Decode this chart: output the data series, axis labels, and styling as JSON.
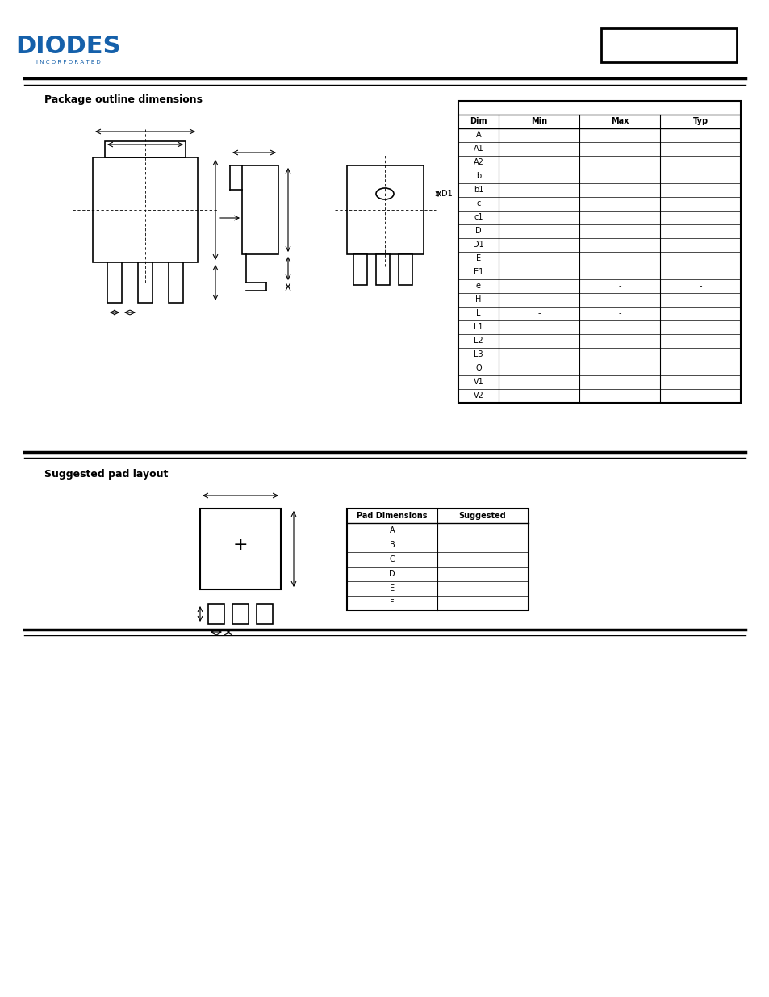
{
  "title": "Package outline dimensions",
  "title2": "Suggested pad layout",
  "background_color": "#ffffff",
  "line_color": "#000000",
  "table1_header_row": [
    "Dim",
    "Min",
    "Max",
    "Typ"
  ],
  "table1_rows": [
    [
      "A",
      "",
      "",
      ""
    ],
    [
      "A1",
      "",
      "",
      ""
    ],
    [
      "A2",
      "",
      "",
      ""
    ],
    [
      "b",
      "",
      "",
      ""
    ],
    [
      "b1",
      "",
      "",
      ""
    ],
    [
      "c",
      "",
      "",
      ""
    ],
    [
      "c1",
      "",
      "",
      ""
    ],
    [
      "D",
      "",
      "",
      ""
    ],
    [
      "D1",
      "",
      "",
      ""
    ],
    [
      "E",
      "",
      "",
      ""
    ],
    [
      "E1",
      "",
      "",
      ""
    ],
    [
      "e",
      "",
      "-",
      "-"
    ],
    [
      "H",
      "",
      "-",
      "-"
    ],
    [
      "L",
      "-",
      "-",
      ""
    ],
    [
      "L1",
      "",
      "",
      ""
    ],
    [
      "L2",
      "",
      "-",
      "-"
    ],
    [
      "L3",
      "",
      "",
      ""
    ],
    [
      "Q",
      "",
      "",
      ""
    ],
    [
      "V1",
      "",
      "",
      ""
    ],
    [
      "V2",
      "",
      "",
      "-"
    ]
  ],
  "table2_header_row": [
    "Pad Dimensions",
    "Suggested"
  ],
  "table2_rows": [
    [
      "A",
      ""
    ],
    [
      "B",
      ""
    ],
    [
      "C",
      ""
    ],
    [
      "D",
      ""
    ],
    [
      "E",
      ""
    ],
    [
      "F",
      ""
    ]
  ]
}
